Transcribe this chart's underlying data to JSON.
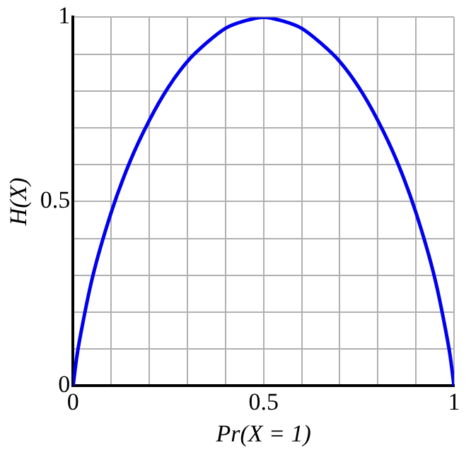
{
  "chart_data": {
    "type": "line",
    "xlabel": "Pr(X = 1)",
    "ylabel": "H(X)",
    "x": [
      0,
      0.01,
      0.02,
      0.05,
      0.1,
      0.15,
      0.2,
      0.25,
      0.3,
      0.35,
      0.4,
      0.45,
      0.5,
      0.55,
      0.6,
      0.65,
      0.7,
      0.75,
      0.8,
      0.85,
      0.9,
      0.95,
      0.98,
      0.99,
      1
    ],
    "series": [
      {
        "color": "#0000ee",
        "values": [
          0,
          0.08,
          0.14,
          0.29,
          0.47,
          0.61,
          0.72,
          0.81,
          0.88,
          0.93,
          0.97,
          0.99,
          1,
          0.99,
          0.97,
          0.93,
          0.88,
          0.81,
          0.72,
          0.61,
          0.47,
          0.29,
          0.14,
          0.08,
          0
        ]
      }
    ],
    "xlim": [
      0,
      1
    ],
    "ylim": [
      0,
      1
    ],
    "xticks": [
      0,
      {
        "value": 0.1,
        "label": null
      },
      {
        "value": 0.2,
        "label": null
      },
      {
        "value": 0.3,
        "label": null
      },
      {
        "value": 0.4,
        "label": null
      },
      0.5,
      {
        "value": 0.6,
        "label": null
      },
      {
        "value": 0.7,
        "label": null
      },
      {
        "value": 0.8,
        "label": null
      },
      {
        "value": 0.9,
        "label": null
      },
      1
    ],
    "yticks": [
      0,
      {
        "value": 0.1,
        "label": null
      },
      {
        "value": 0.2,
        "label": null
      },
      {
        "value": 0.3,
        "label": null
      },
      {
        "value": 0.4,
        "label": null
      },
      0.5,
      {
        "value": 0.6,
        "label": null
      },
      {
        "value": 0.7,
        "label": null
      },
      {
        "value": 0.8,
        "label": null
      },
      {
        "value": 0.9,
        "label": null
      },
      1
    ],
    "grid": true,
    "marker": "none",
    "line_style": "solid"
  }
}
